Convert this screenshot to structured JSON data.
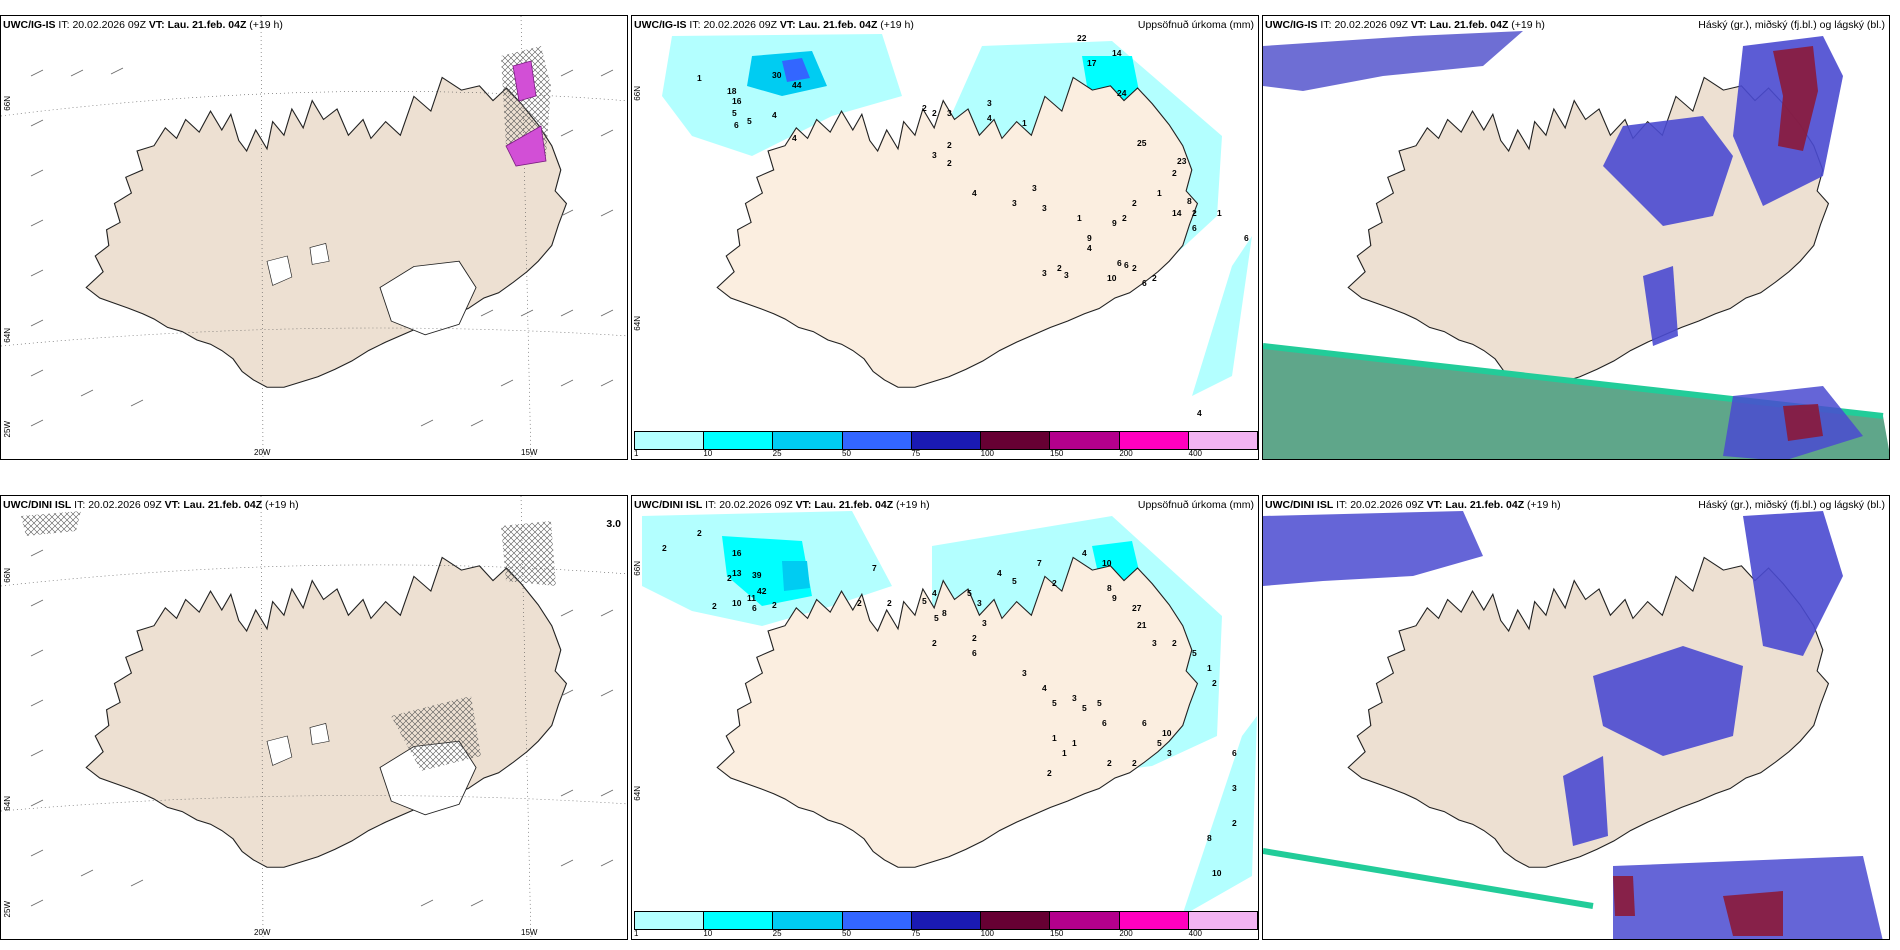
{
  "panels": {
    "top_left": {
      "model": "UWC/IG-IS",
      "it_label": "IT:",
      "it_value": "20.02.2026 09Z",
      "vt_label": "VT:",
      "vt_value": "Lau. 21.feb. 04Z",
      "offset": "(+19 h)",
      "right_title": ""
    },
    "top_mid": {
      "model": "UWC/IG-IS",
      "it_label": "IT:",
      "it_value": "20.02.2026 09Z",
      "vt_label": "VT:",
      "vt_value": "Lau. 21.feb. 04Z",
      "offset": "(+19 h)",
      "right_title": "Uppsöfnuð úrkoma (mm)"
    },
    "top_right": {
      "model": "UWC/IG-IS",
      "it_label": "IT:",
      "it_value": "20.02.2026 09Z",
      "vt_label": "VT:",
      "vt_value": "Lau. 21.feb. 04Z",
      "offset": "(+19 h)",
      "right_title": "Háský (gr.), miðský (fj.bl.) og lágský (bl.)"
    },
    "bot_left": {
      "model": "UWC/DINI ISL",
      "it_label": "IT:",
      "it_value": "20.02.2026 09Z",
      "vt_label": "VT:",
      "vt_value": "Lau. 21.feb. 04Z",
      "offset": "(+19 h)",
      "right_title": ""
    },
    "bot_mid": {
      "model": "UWC/DINI ISL",
      "it_label": "IT:",
      "it_value": "20.02.2026 09Z",
      "vt_label": "VT:",
      "vt_value": "Lau. 21.feb. 04Z",
      "offset": "(+19 h)",
      "right_title": "Uppsöfnuð úrkoma (mm)"
    },
    "bot_right": {
      "model": "UWC/DINI ISL",
      "it_label": "IT:",
      "it_value": "20.02.2026 09Z",
      "vt_label": "VT:",
      "vt_value": "Lau. 21.feb. 04Z",
      "offset": "(+19 h)",
      "right_title": "Háský (gr.), miðský (fj.bl.) og lágský (bl.)"
    }
  },
  "graticule": {
    "lon_20w": "20W",
    "lon_15w": "15W",
    "lat_66n": "66N",
    "lat_64n": "64N",
    "lon_25w": "25W",
    "lat_66n_mid": "66N",
    "lat_64n_mid": "64N"
  },
  "colorbar": {
    "labels": [
      "1",
      "10",
      "25",
      "50",
      "75",
      "100",
      "150",
      "200",
      "400"
    ],
    "colors": [
      "#b3ffff",
      "#00ffff",
      "#00ccf2",
      "#3366ff",
      "#1a1ab2",
      "#660033",
      "#b3008c",
      "#ff00bf",
      "#f2b3f2"
    ]
  },
  "precip_top": [
    "1",
    "18",
    "16",
    "30",
    "44",
    "5",
    "5",
    "4",
    "6",
    "4",
    "22",
    "17",
    "14",
    "2",
    "2",
    "3",
    "3",
    "2",
    "2",
    "3",
    "4",
    "1",
    "4",
    "3",
    "3",
    "3",
    "9",
    "24",
    "25",
    "23",
    "2",
    "1",
    "2",
    "2",
    "1",
    "9",
    "4",
    "14",
    "8",
    "2",
    "1",
    "6",
    "2",
    "2",
    "10",
    "6",
    "6",
    "6",
    "2",
    "3",
    "3",
    "6",
    "4"
  ],
  "precip_bot": [
    "2",
    "2",
    "2",
    "2",
    "16",
    "13",
    "39",
    "42",
    "11",
    "10",
    "6",
    "2",
    "7",
    "2",
    "2",
    "5",
    "4",
    "5",
    "8",
    "5",
    "3",
    "3",
    "2",
    "2",
    "6",
    "4",
    "5",
    "7",
    "2",
    "4",
    "10",
    "8",
    "9",
    "27",
    "21",
    "3",
    "2",
    "5",
    "1",
    "2",
    "3",
    "4",
    "5",
    "3",
    "5",
    "5",
    "6",
    "6",
    "10",
    "5",
    "3",
    "2",
    "2",
    "1",
    "1",
    "1",
    "2",
    "3",
    "2",
    "8",
    "10",
    "6"
  ],
  "pressure_label": "3.0"
}
